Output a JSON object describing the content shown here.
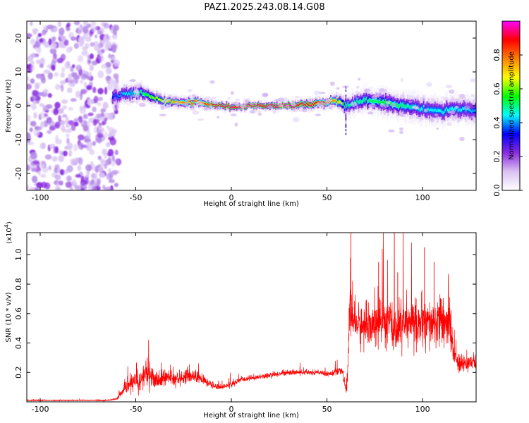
{
  "title": "PAZ1.2025.243.08.14.G08",
  "chart_data": [
    {
      "type": "heatmap",
      "name": "spectrogram",
      "xlabel": "Height of straight line (km)",
      "ylabel": "Frequency (Hz)",
      "xlim": [
        -107,
        128
      ],
      "ylim": [
        -25,
        25
      ],
      "xticks": [
        -100,
        -50,
        0,
        50,
        100
      ],
      "yticks": [
        -20,
        -10,
        0,
        10,
        20
      ],
      "colorbar": {
        "label": "Normalized spectral amplitude",
        "range": [
          0,
          1
        ],
        "ticks": [
          0.0,
          0.2,
          0.4,
          0.6,
          0.8
        ],
        "tick_labels": [
          "0.0",
          "0.2",
          "0.4",
          "0.6",
          "0.8"
        ],
        "colormap": [
          "#ffffff",
          "#d9c2f2",
          "#8a2be2",
          "#0000ff",
          "#00ffff",
          "#00ff00",
          "#ffff00",
          "#ff8000",
          "#ff0000",
          "#ff00ff"
        ]
      },
      "noise_region_x": [
        -107,
        -59
      ],
      "ridge": {
        "x": [
          -62,
          -55,
          -48,
          -42,
          -35,
          -25,
          -15,
          -8,
          0,
          10,
          20,
          30,
          40,
          50,
          55,
          60,
          70,
          80,
          90,
          100,
          110,
          120,
          128
        ],
        "freq": [
          2.5,
          3.5,
          4.0,
          2.5,
          1.5,
          1.0,
          0.8,
          0.0,
          -0.5,
          0.0,
          0.0,
          0.0,
          0.5,
          1.0,
          1.5,
          0.0,
          1.5,
          1.0,
          0.0,
          -1.0,
          -1.5,
          -1.0,
          -1.5
        ],
        "peak_amplitude": [
          0.35,
          0.45,
          0.5,
          0.6,
          0.7,
          0.8,
          0.85,
          0.9,
          0.95,
          0.95,
          0.95,
          0.95,
          0.9,
          0.85,
          0.75,
          0.5,
          0.5,
          0.55,
          0.5,
          0.45,
          0.45,
          0.45,
          0.4
        ],
        "spread_hz": [
          3,
          3,
          3,
          2.5,
          2,
          2,
          2,
          1.5,
          1.5,
          1.5,
          1.5,
          1.5,
          2,
          2,
          2.5,
          3,
          3.5,
          4,
          4,
          4,
          4,
          4,
          4
        ]
      }
    },
    {
      "type": "line",
      "name": "snr",
      "xlabel": "Height of straight line (km)",
      "ylabel": "SNR (10 * v/v)",
      "y_multiplier": "(x10",
      "y_multiplier_exp": "4",
      "y_multiplier_close": ")",
      "xlim": [
        -107,
        128
      ],
      "ylim": [
        0,
        1.15
      ],
      "xticks": [
        -100,
        -50,
        0,
        50,
        100
      ],
      "yticks": [
        0.2,
        0.4,
        0.6,
        0.8,
        1.0
      ],
      "ytick_labels": [
        "0.2",
        "0.4",
        "0.6",
        "0.8",
        "1.0"
      ],
      "color": "#ff0000",
      "series": [
        {
          "name": "SNR",
          "x": [
            -107,
            -80,
            -65,
            -60,
            -56,
            -52,
            -48,
            -45,
            -42,
            -38,
            -35,
            -30,
            -25,
            -20,
            -15,
            -10,
            -5,
            0,
            5,
            10,
            15,
            20,
            25,
            30,
            35,
            40,
            45,
            50,
            55,
            58,
            60,
            61,
            62,
            63,
            64,
            66,
            70,
            75,
            80,
            85,
            90,
            95,
            100,
            105,
            110,
            115,
            116,
            118,
            120,
            125,
            128
          ],
          "y": [
            0.01,
            0.01,
            0.01,
            0.02,
            0.08,
            0.13,
            0.13,
            0.2,
            0.17,
            0.14,
            0.17,
            0.15,
            0.17,
            0.18,
            0.15,
            0.11,
            0.1,
            0.12,
            0.15,
            0.16,
            0.17,
            0.18,
            0.19,
            0.2,
            0.2,
            0.2,
            0.2,
            0.19,
            0.2,
            0.21,
            0.08,
            0.22,
            0.75,
            0.62,
            0.55,
            0.52,
            0.5,
            0.52,
            0.55,
            0.5,
            0.52,
            0.55,
            0.53,
            0.52,
            0.55,
            0.5,
            0.35,
            0.27,
            0.25,
            0.27,
            0.27
          ],
          "noise_amplitude": [
            0.003,
            0.003,
            0.003,
            0.005,
            0.03,
            0.05,
            0.06,
            0.08,
            0.06,
            0.05,
            0.05,
            0.04,
            0.04,
            0.04,
            0.03,
            0.02,
            0.015,
            0.015,
            0.015,
            0.015,
            0.015,
            0.015,
            0.015,
            0.015,
            0.015,
            0.015,
            0.015,
            0.015,
            0.02,
            0.02,
            0.03,
            0.05,
            0.25,
            0.2,
            0.12,
            0.12,
            0.12,
            0.12,
            0.14,
            0.14,
            0.14,
            0.14,
            0.14,
            0.13,
            0.14,
            0.12,
            0.08,
            0.05,
            0.05,
            0.05,
            0.05
          ],
          "notable_peaks": [
            {
              "x": 62.5,
              "y": 1.15
            },
            {
              "x": 101,
              "y": 1.05
            },
            {
              "x": 106,
              "y": 0.95
            },
            {
              "x": 77,
              "y": 0.95
            },
            {
              "x": 87,
              "y": 0.88
            },
            {
              "x": -44,
              "y": 0.3
            }
          ]
        }
      ]
    }
  ]
}
